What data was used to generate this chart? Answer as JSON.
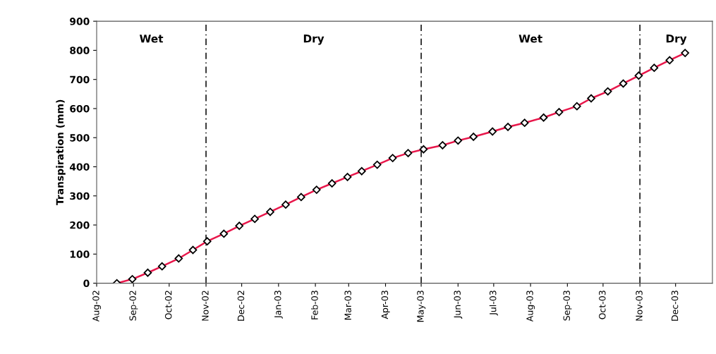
{
  "chart_data": {
    "type": "line",
    "ylabel": "Transpiration (mm)",
    "x": [
      "2002-08-18",
      "2002-08-31",
      "2002-09-13",
      "2002-09-25",
      "2002-10-09",
      "2002-10-21",
      "2002-11-02",
      "2002-11-16",
      "2002-11-29",
      "2002-12-12",
      "2002-12-25",
      "2003-01-07",
      "2003-01-20",
      "2003-02-02",
      "2003-02-15",
      "2003-02-28",
      "2003-03-12",
      "2003-03-25",
      "2003-04-07",
      "2003-04-20",
      "2003-05-03",
      "2003-05-19",
      "2003-06-01",
      "2003-06-14",
      "2003-06-30",
      "2003-07-13",
      "2003-07-27",
      "2003-08-12",
      "2003-08-25",
      "2003-09-09",
      "2003-09-21",
      "2003-10-05",
      "2003-10-18",
      "2003-10-31",
      "2003-11-13",
      "2003-11-26",
      "2003-12-09"
    ],
    "series": [
      {
        "color": "#e8174b",
        "values": [
          0,
          14,
          36,
          58,
          85,
          114,
          144,
          170,
          197,
          221,
          245,
          270,
          296,
          321,
          343,
          365,
          385,
          407,
          430,
          447,
          460,
          474,
          490,
          503,
          521,
          537,
          551,
          569,
          588,
          608,
          635,
          659,
          686,
          713,
          740,
          766,
          791
        ]
      }
    ],
    "marker": "diamond",
    "line_style": "solid",
    "grid": false,
    "legend": false,
    "xlim": [
      "2002-08-01",
      "2004-01-01"
    ],
    "xticks": [
      {
        "value": "2002-08-01",
        "label": "Aug-02"
      },
      {
        "value": "2002-09-01",
        "label": "Sep-02"
      },
      {
        "value": "2002-10-01",
        "label": "Oct-02"
      },
      {
        "value": "2002-11-01",
        "label": "Nov-02"
      },
      {
        "value": "2002-12-01",
        "label": "Dec-02"
      },
      {
        "value": "2003-01-01",
        "label": "Jan-03"
      },
      {
        "value": "2003-02-01",
        "label": "Feb-03"
      },
      {
        "value": "2003-03-01",
        "label": "Mar-03"
      },
      {
        "value": "2003-04-01",
        "label": "Apr-03"
      },
      {
        "value": "2003-05-01",
        "label": "May-03"
      },
      {
        "value": "2003-06-01",
        "label": "Jun-03"
      },
      {
        "value": "2003-07-01",
        "label": "Jul-03"
      },
      {
        "value": "2003-08-01",
        "label": "Aug-03"
      },
      {
        "value": "2003-09-01",
        "label": "Sep-03"
      },
      {
        "value": "2003-10-01",
        "label": "Oct-03"
      },
      {
        "value": "2003-11-01",
        "label": "Nov-03"
      },
      {
        "value": "2003-12-01",
        "label": "Dec-03"
      }
    ],
    "ylim": [
      0,
      900
    ],
    "yticks": [
      0,
      100,
      200,
      300,
      400,
      500,
      600,
      700,
      800,
      900
    ],
    "ref_lines": [
      {
        "axis": "x",
        "value": "2002-11-01",
        "color": "#000000",
        "line_style": "dashed"
      },
      {
        "axis": "x",
        "value": "2003-05-01",
        "color": "#000000",
        "line_style": "dashed"
      },
      {
        "axis": "x",
        "value": "2003-11-01",
        "color": "#000000",
        "line_style": "dashed"
      }
    ],
    "annotations": [
      "Wet",
      "Dry",
      "Wet",
      "Dry"
    ]
  }
}
